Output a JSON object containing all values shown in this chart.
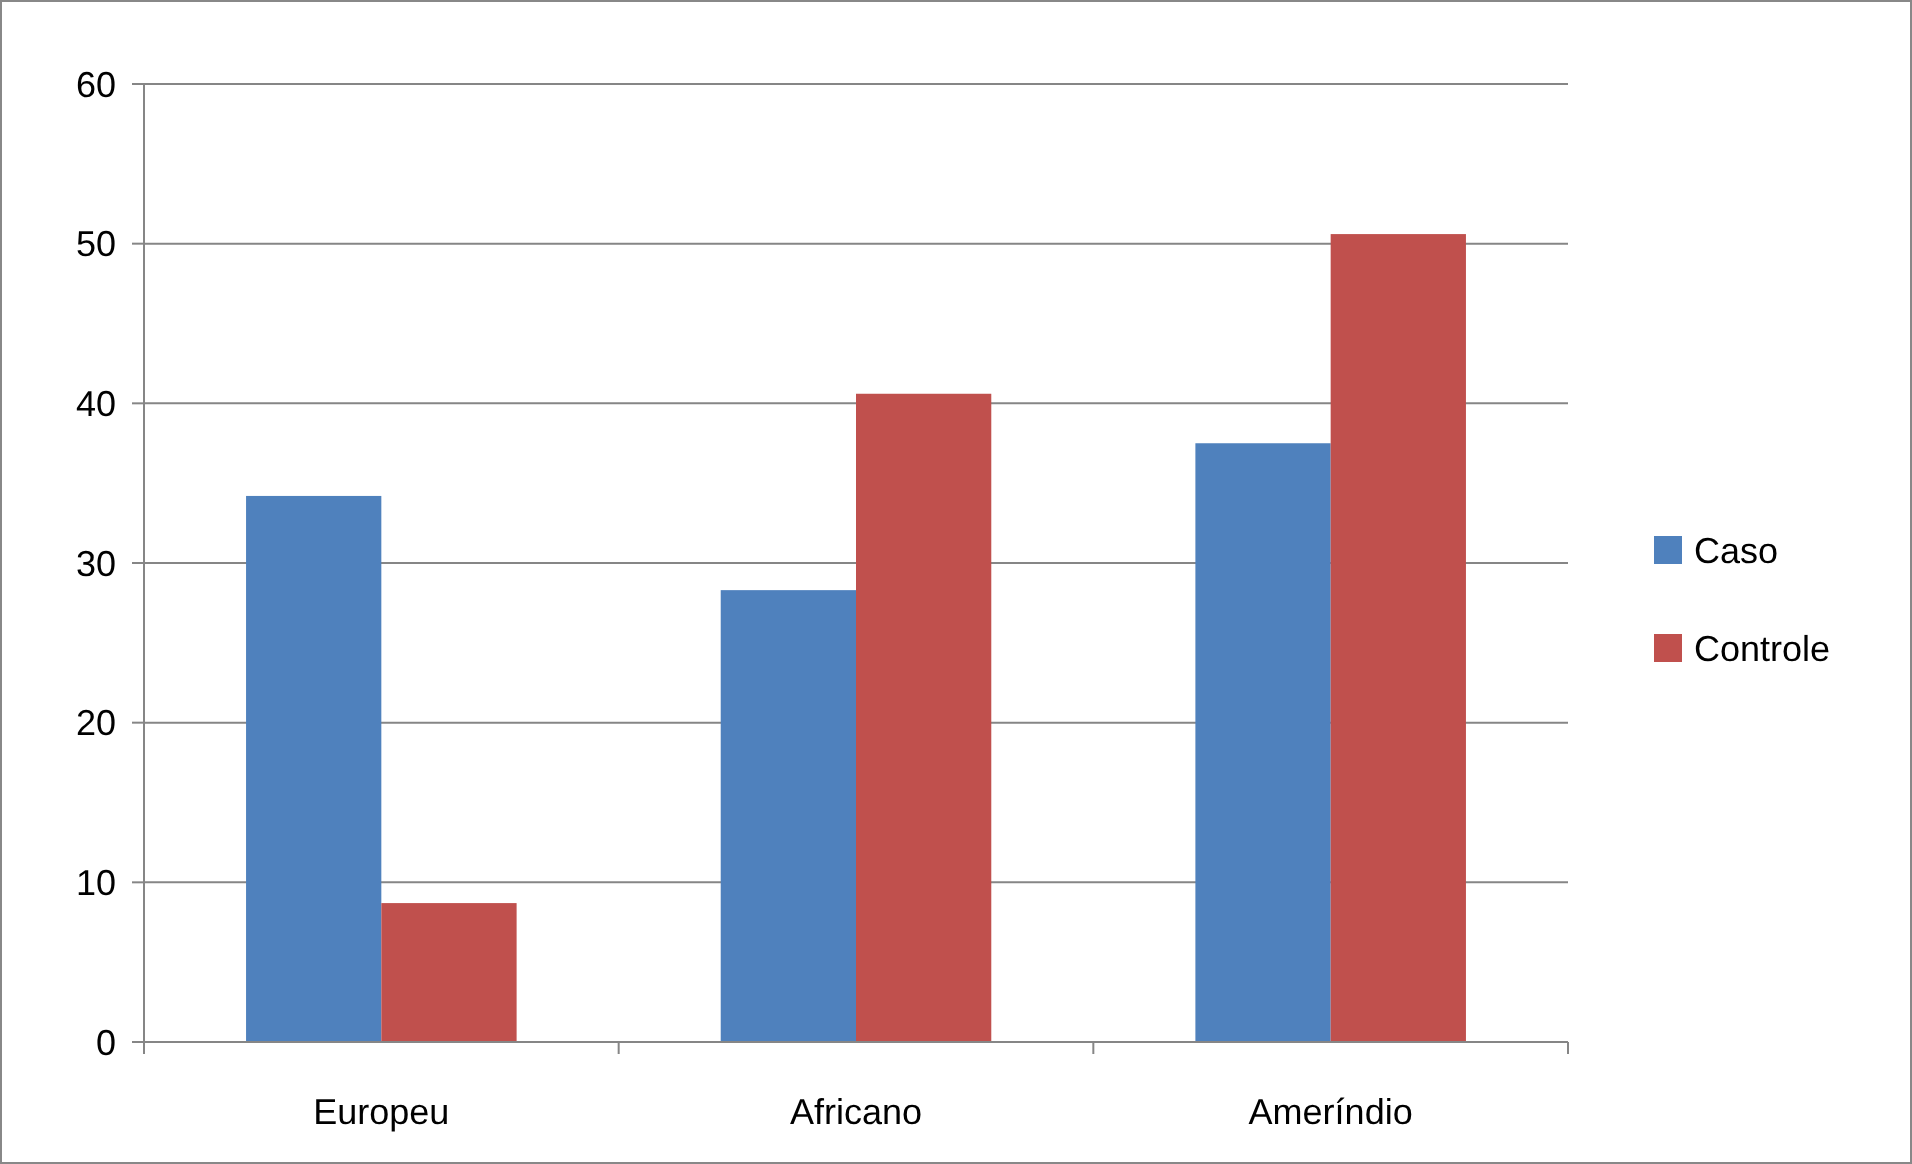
{
  "chart_data": {
    "type": "bar",
    "categories": [
      "Europeu",
      "Africano",
      "Ameríndio"
    ],
    "series": [
      {
        "name": "Caso",
        "color": "#4f81bd",
        "values": [
          34.2,
          28.3,
          37.5
        ]
      },
      {
        "name": "Controle",
        "color": "#c0504d",
        "values": [
          8.7,
          40.6,
          50.6
        ]
      }
    ],
    "ylim": [
      0,
      60
    ],
    "yticks": [
      0,
      10,
      20,
      30,
      40,
      50,
      60
    ],
    "grid": "y",
    "legend": "right"
  }
}
